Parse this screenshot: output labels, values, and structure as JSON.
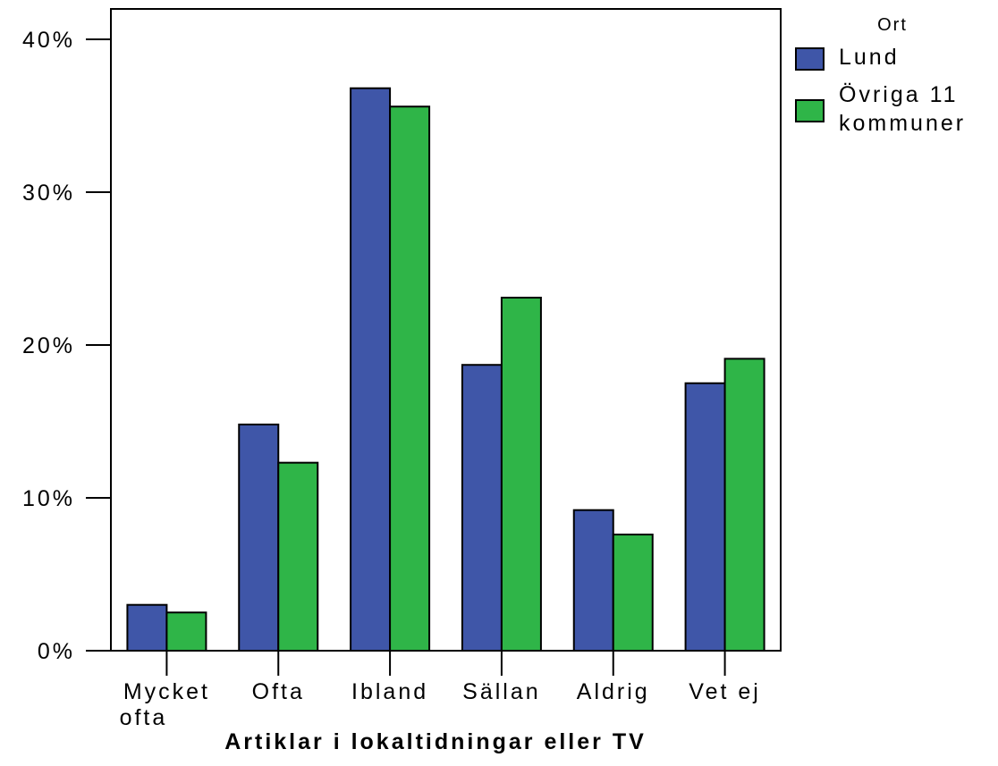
{
  "chart_data": {
    "type": "bar",
    "categories": [
      [
        "Mycket",
        "ofta"
      ],
      [
        "Ofta"
      ],
      [
        "Ibland"
      ],
      [
        "Sällan"
      ],
      [
        "Aldrig"
      ],
      [
        "Vet ej"
      ]
    ],
    "series": [
      {
        "name": "Lund",
        "values": [
          3.0,
          14.8,
          36.8,
          18.7,
          9.2,
          17.5
        ],
        "color": "#3f56a8"
      },
      {
        "name_lines": [
          "Övriga 11",
          "kommuner"
        ],
        "values": [
          2.5,
          12.3,
          35.6,
          23.1,
          7.6,
          19.1
        ],
        "color": "#2fb548"
      }
    ],
    "xlabel": "Artiklar i lokaltidningar eller TV",
    "ylabel": "",
    "ylim": [
      0,
      42
    ],
    "yticks": [
      0,
      10,
      20,
      30,
      40
    ],
    "ytick_labels": [
      "0%",
      "10%",
      "20%",
      "30%",
      "40%"
    ],
    "legend": {
      "title": "Ort",
      "placement": "right-top"
    },
    "grid": false
  }
}
